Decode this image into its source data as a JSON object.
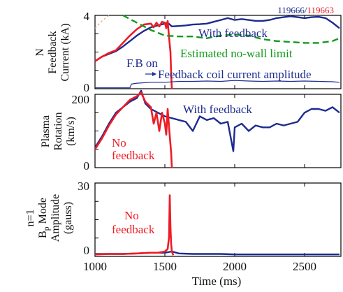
{
  "figure": {
    "shot_a": "119666",
    "shot_sep": "/",
    "shot_b": "119663",
    "xlabel": "Time (ms)",
    "x_ticks": [
      "1000",
      "1500",
      "2000",
      "2500"
    ]
  },
  "colors": {
    "blue": "#1c2b8f",
    "red": "#ee1c25",
    "green": "#119a1c",
    "orange": "#e8a070"
  },
  "chart_data": [
    {
      "type": "line",
      "panel": "top",
      "ylabel_lines": [
        "N",
        "Feedback",
        "Current (kA)"
      ],
      "xlim": [
        1000,
        2760
      ],
      "ylim": [
        0,
        4
      ],
      "y_ticks": [
        "4",
        "0"
      ],
      "series": [
        {
          "name": "With feedback",
          "color": "blue",
          "x": [
            1000,
            1050,
            1100,
            1150,
            1200,
            1250,
            1300,
            1350,
            1400,
            1450,
            1500,
            1520,
            1550,
            1600,
            1650,
            1700,
            1750,
            1800,
            1850,
            1900,
            1950,
            2000,
            2050,
            2100,
            2150,
            2200,
            2250,
            2300,
            2350,
            2400,
            2450,
            2500,
            2550,
            2600,
            2650,
            2700,
            2750
          ],
          "y": [
            1.5,
            1.75,
            1.9,
            2.05,
            2.3,
            2.6,
            2.9,
            3.15,
            3.35,
            3.45,
            3.55,
            3.6,
            3.4,
            3.42,
            3.45,
            3.5,
            3.52,
            3.55,
            3.65,
            3.75,
            3.85,
            3.75,
            3.8,
            3.75,
            3.7,
            3.7,
            3.75,
            3.85,
            3.9,
            3.95,
            3.9,
            3.85,
            3.9,
            3.92,
            3.85,
            3.6,
            3.3
          ]
        },
        {
          "name": "No feedback",
          "color": "red",
          "x": [
            1000,
            1050,
            1100,
            1150,
            1200,
            1250,
            1300,
            1350,
            1400,
            1420,
            1440,
            1460,
            1480,
            1500,
            1510,
            1520,
            1530,
            1540,
            1545,
            1550
          ],
          "y": [
            1.5,
            1.75,
            1.95,
            2.1,
            2.5,
            2.9,
            3.25,
            3.5,
            3.55,
            3.35,
            3.6,
            3.4,
            3.65,
            3.6,
            3.3,
            3.7,
            2.8,
            2.0,
            0.8,
            0.0
          ]
        },
        {
          "name": "Estimated no-wall limit",
          "color": "green",
          "dashed": true,
          "x": [
            1200,
            1300,
            1400,
            1500,
            1600,
            1700,
            1800,
            1900,
            2000,
            2100,
            2200,
            2300,
            2400,
            2500,
            2600,
            2700,
            2750
          ],
          "y": [
            4.0,
            3.6,
            3.2,
            2.9,
            2.85,
            2.85,
            2.75,
            2.9,
            2.95,
            2.9,
            2.7,
            2.6,
            2.55,
            2.5,
            2.5,
            2.6,
            2.75
          ]
        },
        {
          "name": "Feedback coil current amplitude",
          "color": "blue",
          "x": [
            1000,
            1100,
            1200,
            1250,
            1260,
            1300,
            1400,
            1500,
            1600,
            1700,
            1800,
            1900,
            2000,
            2100,
            2200,
            2300,
            2400,
            2500,
            2600,
            2700,
            2750
          ],
          "y": [
            0.05,
            0.05,
            0.05,
            0.05,
            0.25,
            0.3,
            0.35,
            0.35,
            0.4,
            0.4,
            0.42,
            0.4,
            0.45,
            0.42,
            0.4,
            0.42,
            0.4,
            0.42,
            0.4,
            0.38,
            0.35
          ]
        }
      ],
      "annotations": [
        "With feedback",
        "Estimated no-wall limit",
        "F.B on",
        "Feedback coil current amplitude"
      ]
    },
    {
      "type": "line",
      "panel": "middle",
      "ylabel_lines": [
        "Plasma",
        "Rotation",
        "(km/s)"
      ],
      "xlim": [
        1000,
        2760
      ],
      "ylim": [
        0,
        200
      ],
      "y_ticks": [
        "200",
        "0"
      ],
      "series": [
        {
          "name": "With feedback",
          "color": "blue",
          "x": [
            1000,
            1050,
            1100,
            1150,
            1200,
            1250,
            1300,
            1330,
            1360,
            1400,
            1450,
            1500,
            1550,
            1600,
            1650,
            1700,
            1750,
            1800,
            1850,
            1900,
            1950,
            1990,
            2000,
            2050,
            2100,
            2150,
            2200,
            2250,
            2300,
            2350,
            2400,
            2450,
            2500,
            2550,
            2600,
            2650,
            2700,
            2750
          ],
          "y": [
            55,
            85,
            120,
            150,
            165,
            180,
            190,
            210,
            175,
            160,
            150,
            140,
            135,
            130,
            125,
            100,
            140,
            130,
            135,
            120,
            125,
            45,
            110,
            120,
            100,
            115,
            110,
            110,
            120,
            115,
            120,
            125,
            150,
            160,
            160,
            155,
            165,
            150
          ]
        },
        {
          "name": "No feedback",
          "color": "red",
          "x": [
            1000,
            1050,
            1100,
            1150,
            1200,
            1250,
            1300,
            1330,
            1360,
            1400,
            1420,
            1440,
            1460,
            1480,
            1500,
            1510,
            1520,
            1530,
            1545,
            1550
          ],
          "y": [
            50,
            80,
            115,
            145,
            165,
            185,
            195,
            205,
            180,
            165,
            120,
            150,
            100,
            150,
            120,
            90,
            160,
            110,
            40,
            0
          ]
        }
      ],
      "annotations": [
        "With feedback",
        "No feedback"
      ]
    },
    {
      "type": "line",
      "panel": "bottom",
      "ylabel_lines": [
        "n=1",
        "Bp Mode",
        "Amplitude",
        "(gauss)"
      ],
      "xlim": [
        1000,
        2760
      ],
      "ylim": [
        0,
        30
      ],
      "y_ticks": [
        "30",
        "0"
      ],
      "series": [
        {
          "name": "With feedback",
          "color": "blue",
          "x": [
            1000,
            1100,
            1200,
            1300,
            1400,
            1500,
            1550,
            1600,
            1700,
            1800,
            1900,
            2000,
            2100,
            2200,
            2300,
            2400,
            2500,
            2600,
            2700,
            2750
          ],
          "y": [
            1.0,
            1.0,
            1.0,
            1.2,
            1.5,
            1.5,
            2.0,
            1.2,
            1.0,
            1.0,
            1.0,
            0.8,
            0.8,
            0.8,
            0.8,
            0.8,
            0.8,
            0.8,
            0.8,
            0.8
          ]
        },
        {
          "name": "No feedback",
          "color": "red",
          "x": [
            1000,
            1100,
            1200,
            1300,
            1400,
            1450,
            1500,
            1520,
            1530,
            1535,
            1540,
            1545,
            1550,
            1560
          ],
          "y": [
            0.8,
            1.0,
            1.0,
            1.2,
            1.5,
            1.5,
            2.0,
            3.0,
            8.0,
            25.0,
            12.0,
            5.0,
            2.0,
            0.5
          ]
        }
      ],
      "annotations": [
        "No feedback"
      ]
    }
  ]
}
